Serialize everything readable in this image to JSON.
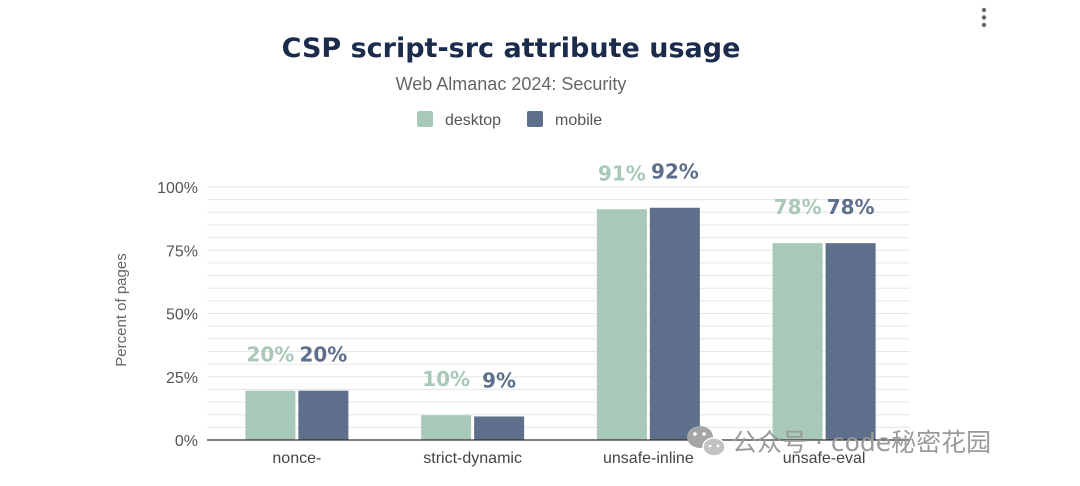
{
  "menu_icon": "more-vertical-icon",
  "watermark": {
    "icon": "wechat-icon",
    "text": "公众号 · code秘密花园"
  },
  "colors": {
    "desktop": "#a8c9b8",
    "mobile": "#5e6f8b",
    "title": "#1a2b4c"
  },
  "chart_data": {
    "type": "bar",
    "title": "CSP script-src attribute usage",
    "subtitle": "Web Almanac 2024: Security",
    "xlabel": "",
    "ylabel": "Percent of pages",
    "ylim": [
      0,
      100
    ],
    "yticks": [
      0,
      25,
      50,
      75,
      100
    ],
    "ytick_labels": [
      "0%",
      "25%",
      "50%",
      "75%",
      "100%"
    ],
    "legend_position": "top-center",
    "categories": [
      "nonce-",
      "strict-dynamic",
      "unsafe-inline",
      "unsafe-eval"
    ],
    "series": [
      {
        "name": "desktop",
        "values": [
          19.5,
          9.8,
          91.2,
          77.8
        ],
        "labels": [
          "20%",
          "10%",
          "91%",
          "78%"
        ]
      },
      {
        "name": "mobile",
        "values": [
          19.5,
          9.3,
          91.8,
          77.8
        ],
        "labels": [
          "20%",
          "9%",
          "92%",
          "78%"
        ]
      }
    ]
  }
}
